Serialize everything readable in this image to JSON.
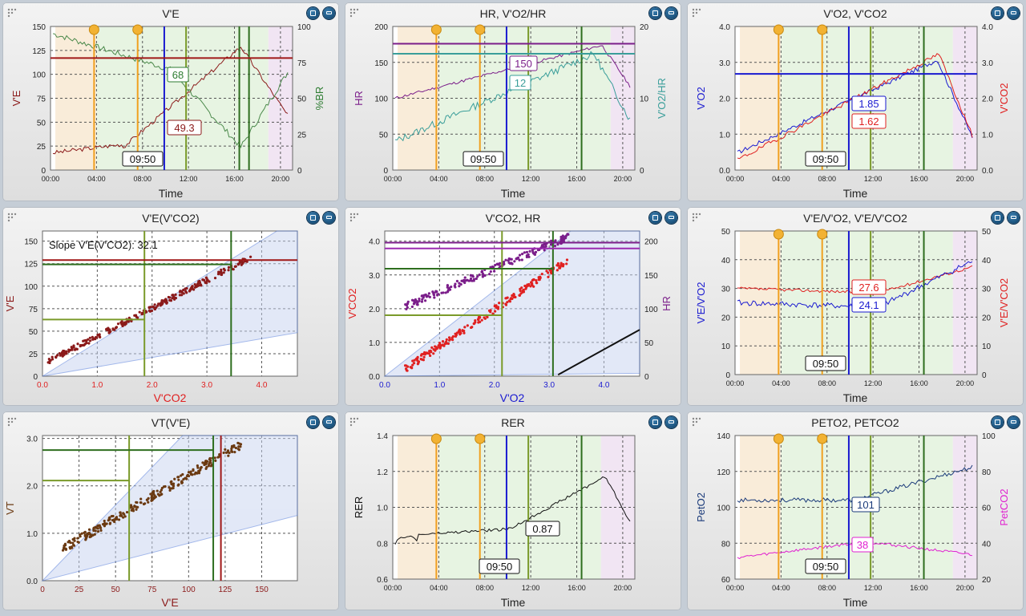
{
  "panels": [
    {
      "id": "ve",
      "title": "V'E",
      "kind": "time",
      "yl": {
        "label": "V'E",
        "color": "#8b1a1a",
        "ticks": [
          "0",
          "25",
          "50",
          "75",
          "100",
          "125",
          "150"
        ]
      },
      "yr": {
        "label": "%BR",
        "color": "#2e7d32",
        "ticks": [
          "0",
          "25",
          "50",
          "75",
          "100"
        ]
      },
      "xlabel": "Time",
      "xticks": [
        "00:00",
        "04:00",
        "08:00",
        "12:00",
        "16:00",
        "20:00"
      ],
      "stamp": "09:50",
      "labels": [
        {
          "text": "68",
          "color": "#2e7d32"
        },
        {
          "text": "49.3",
          "color": "#8b1a1a"
        }
      ]
    },
    {
      "id": "hr",
      "title": "HR, V'O2/HR",
      "kind": "time",
      "yl": {
        "label": "HR",
        "color": "#7b1e8a",
        "ticks": [
          "0",
          "50",
          "100",
          "150",
          "200"
        ]
      },
      "yr": {
        "label": "V'O2/HR",
        "color": "#3a9e9a",
        "ticks": [
          "0",
          "10",
          "20"
        ]
      },
      "xlabel": "Time",
      "xticks": [
        "00:00",
        "04:00",
        "08:00",
        "12:00",
        "16:00",
        "20:00"
      ],
      "stamp": "09:50",
      "labels": [
        {
          "text": "150",
          "color": "#7b1e8a"
        },
        {
          "text": "12",
          "color": "#3a9e9a"
        }
      ]
    },
    {
      "id": "vo2",
      "title": "V'O2, V'CO2",
      "kind": "time",
      "yl": {
        "label": "V'O2",
        "color": "#1a1ad0",
        "ticks": [
          "0.0",
          "1.0",
          "2.0",
          "3.0",
          "4.0"
        ]
      },
      "yr": {
        "label": "V'CO2",
        "color": "#e02020",
        "ticks": [
          "0.0",
          "1.0",
          "2.0",
          "3.0",
          "4.0"
        ]
      },
      "xlabel": "Time",
      "xticks": [
        "00:00",
        "04:00",
        "08:00",
        "12:00",
        "16:00",
        "20:00"
      ],
      "stamp": "09:50",
      "labels": [
        {
          "text": "1.85",
          "color": "#1a1ad0"
        },
        {
          "text": "1.62",
          "color": "#e02020"
        }
      ]
    },
    {
      "id": "vevco2",
      "title": "V'E(V'CO2)",
      "kind": "scatter",
      "yl": {
        "label": "V'E",
        "color": "#8b1a1a",
        "ticks": [
          "0",
          "25",
          "50",
          "75",
          "100",
          "125",
          "150"
        ]
      },
      "xlabel": "V'CO2",
      "xlabelColor": "#e02020",
      "xticks": [
        "0.0",
        "1.0",
        "2.0",
        "3.0",
        "4.0"
      ],
      "note": "Slope V'E(V'CO2):  32.1"
    },
    {
      "id": "vco2hr",
      "title": "V'CO2, HR",
      "kind": "scatter",
      "yl": {
        "label": "V'CO2",
        "color": "#e02020",
        "ticks": [
          "0.0",
          "1.0",
          "2.0",
          "3.0",
          "4.0"
        ]
      },
      "yr": {
        "label": "HR",
        "color": "#7b1e8a",
        "ticks": [
          "0",
          "50",
          "100",
          "150",
          "200"
        ]
      },
      "xlabel": "V'O2",
      "xlabelColor": "#1a1ad0",
      "xticks": [
        "0.0",
        "1.0",
        "2.0",
        "3.0",
        "4.0"
      ]
    },
    {
      "id": "eq",
      "title": "V'E/V'O2, V'E/V'CO2",
      "kind": "time",
      "yl": {
        "label": "V'E/V'O2",
        "color": "#1a1ad0",
        "ticks": [
          "0",
          "10",
          "20",
          "30",
          "40",
          "50"
        ]
      },
      "yr": {
        "label": "V'E/V'CO2",
        "color": "#e02020",
        "ticks": [
          "0",
          "10",
          "20",
          "30",
          "40",
          "50"
        ]
      },
      "xlabel": "Time",
      "xticks": [
        "00:00",
        "04:00",
        "08:00",
        "12:00",
        "16:00",
        "20:00"
      ],
      "stamp": "09:50",
      "labels": [
        {
          "text": "27.6",
          "color": "#e02020"
        },
        {
          "text": "24.1",
          "color": "#1a1ad0"
        }
      ]
    },
    {
      "id": "vt",
      "title": "VT(V'E)",
      "kind": "scatter",
      "yl": {
        "label": "VT",
        "color": "#6b3a12",
        "ticks": [
          "0.0",
          "1.0",
          "2.0",
          "3.0"
        ]
      },
      "xlabel": "V'E",
      "xlabelColor": "#8b1a1a",
      "xticks": [
        "0",
        "25",
        "50",
        "75",
        "100",
        "125",
        "150"
      ]
    },
    {
      "id": "rer",
      "title": "RER",
      "kind": "time",
      "yl": {
        "label": "RER",
        "color": "#111111",
        "ticks": [
          "0.6",
          "0.8",
          "1.0",
          "1.2",
          "1.4"
        ]
      },
      "xlabel": "Time",
      "xticks": [
        "00:00",
        "04:00",
        "08:00",
        "12:00",
        "16:00",
        "20:00"
      ],
      "stamp": "09:50",
      "labels": [
        {
          "text": "0.87",
          "color": "#111111"
        }
      ]
    },
    {
      "id": "pet",
      "title": "PETO2, PETCO2",
      "kind": "time",
      "yl": {
        "label": "PetO2",
        "color": "#1a3a7a",
        "ticks": [
          "60",
          "80",
          "100",
          "120",
          "140"
        ]
      },
      "yr": {
        "label": "PetCO2",
        "color": "#e020d0",
        "ticks": [
          "20",
          "40",
          "60",
          "80",
          "100"
        ]
      },
      "xlabel": "Time",
      "xticks": [
        "00:00",
        "04:00",
        "08:00",
        "12:00",
        "16:00",
        "20:00"
      ],
      "stamp": "09:50",
      "labels": [
        {
          "text": "101",
          "color": "#1a3a7a"
        },
        {
          "text": "38",
          "color": "#e020d0"
        }
      ]
    }
  ]
}
